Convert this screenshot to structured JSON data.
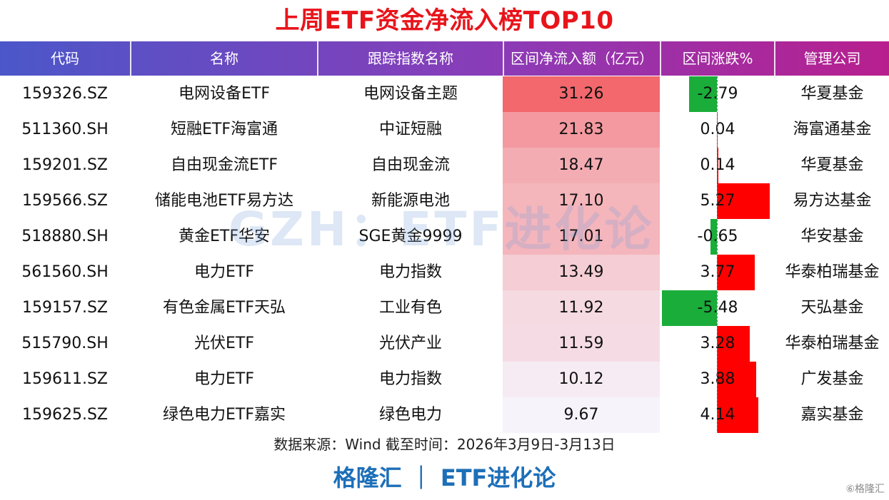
{
  "title": "上周ETF资金净流入榜TOP10",
  "headers": [
    "代码",
    "名称",
    "跟踪指数名称",
    "区间净流入额（亿元）",
    "区间涨跌%",
    "管理公司"
  ],
  "colors": {
    "title": "#e8141b",
    "positive_bar": "#ff0000",
    "negative_bar": "#1aad3a",
    "flow_heat_high": "#f2686d",
    "flow_heat_low": "#f6f3fb",
    "brand": "#1d6fb8"
  },
  "rows": [
    {
      "code": "159326.SZ",
      "name": "电网设备ETF",
      "index": "电网设备主题",
      "flow": "31.26",
      "flow_value": 31.26,
      "change": "-2.79",
      "change_value": -2.79,
      "company": "华夏基金"
    },
    {
      "code": "511360.SH",
      "name": "短融ETF海富通",
      "index": "中证短融",
      "flow": "21.83",
      "flow_value": 21.83,
      "change": "0.04",
      "change_value": 0.04,
      "company": "海富通基金"
    },
    {
      "code": "159201.SZ",
      "name": "自由现金流ETF",
      "index": "自由现金流",
      "flow": "18.47",
      "flow_value": 18.47,
      "change": "0.14",
      "change_value": 0.14,
      "company": "华夏基金"
    },
    {
      "code": "159566.SZ",
      "name": "储能电池ETF易方达",
      "index": "新能源电池",
      "flow": "17.10",
      "flow_value": 17.1,
      "change": "5.27",
      "change_value": 5.27,
      "company": "易方达基金"
    },
    {
      "code": "518880.SH",
      "name": "黄金ETF华安",
      "index": "SGE黄金9999",
      "flow": "17.01",
      "flow_value": 17.01,
      "change": "-0.65",
      "change_value": -0.65,
      "company": "华安基金"
    },
    {
      "code": "561560.SH",
      "name": "电力ETF",
      "index": "电力指数",
      "flow": "13.49",
      "flow_value": 13.49,
      "change": "3.77",
      "change_value": 3.77,
      "company": "华泰柏瑞基金"
    },
    {
      "code": "159157.SZ",
      "name": "有色金属ETF天弘",
      "index": "工业有色",
      "flow": "11.92",
      "flow_value": 11.92,
      "change": "-5.48",
      "change_value": -5.48,
      "company": "天弘基金"
    },
    {
      "code": "515790.SH",
      "name": "光伏ETF",
      "index": "光伏产业",
      "flow": "11.59",
      "flow_value": 11.59,
      "change": "3.28",
      "change_value": 3.28,
      "company": "华泰柏瑞基金"
    },
    {
      "code": "159611.SZ",
      "name": "电力ETF",
      "index": "电力指数",
      "flow": "10.12",
      "flow_value": 10.12,
      "change": "3.88",
      "change_value": 3.88,
      "company": "广发基金"
    },
    {
      "code": "159625.SZ",
      "name": "绿色电力ETF嘉实",
      "index": "绿色电力",
      "flow": "9.67",
      "flow_value": 9.67,
      "change": "4.14",
      "change_value": 4.14,
      "company": "嘉实基金"
    }
  ],
  "watermark": "GZH：ETF进化论",
  "source": "数据来源：Wind 截至时间：2026年3月9日-3月13日",
  "brand": "格隆汇 ｜ ETF进化论",
  "logo": "⑥格隆汇"
}
